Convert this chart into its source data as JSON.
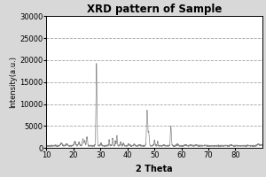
{
  "title": "XRD pattern of Sample",
  "xlabel": "2 Theta",
  "ylabel": "Intensity(a.u.)",
  "xlim": [
    10,
    90
  ],
  "ylim": [
    0,
    30000
  ],
  "yticks": [
    0,
    5000,
    10000,
    15000,
    20000,
    25000,
    30000
  ],
  "xticks": [
    10,
    20,
    30,
    40,
    50,
    60,
    70,
    80
  ],
  "background_color": "#d8d8d8",
  "plot_bg_color": "#ffffff",
  "line_color": "#888888",
  "grid_color": "#999999",
  "title_fontsize": 8.5,
  "label_fontsize": 7,
  "tick_fontsize": 6,
  "peak_data": [
    [
      28.5,
      0.18,
      19200
    ],
    [
      47.3,
      0.22,
      8600
    ],
    [
      56.1,
      0.18,
      5000
    ],
    [
      36.1,
      0.15,
      2800
    ],
    [
      33.2,
      0.15,
      1800
    ],
    [
      34.5,
      0.15,
      2200
    ],
    [
      35.5,
      0.15,
      1600
    ],
    [
      47.9,
      0.18,
      3500
    ],
    [
      50.0,
      0.18,
      1800
    ],
    [
      51.2,
      0.15,
      1400
    ],
    [
      23.5,
      0.22,
      2000
    ],
    [
      25.0,
      0.18,
      2500
    ],
    [
      24.2,
      0.18,
      1700
    ],
    [
      22.0,
      0.22,
      1300
    ],
    [
      20.5,
      0.28,
      1400
    ],
    [
      17.5,
      0.28,
      900
    ],
    [
      15.5,
      0.28,
      1100
    ],
    [
      30.2,
      0.18,
      1100
    ],
    [
      37.5,
      0.18,
      1400
    ],
    [
      38.5,
      0.18,
      1100
    ],
    [
      40.5,
      0.22,
      900
    ],
    [
      42.5,
      0.22,
      800
    ],
    [
      44.5,
      0.22,
      700
    ],
    [
      53.5,
      0.18,
      700
    ],
    [
      58.5,
      0.22,
      900
    ],
    [
      61.5,
      0.25,
      700
    ],
    [
      63.5,
      0.25,
      600
    ],
    [
      65.5,
      0.25,
      650
    ],
    [
      68.5,
      0.25,
      550
    ],
    [
      69.5,
      0.25,
      500
    ],
    [
      72.5,
      0.28,
      500
    ],
    [
      76.5,
      0.28,
      550
    ],
    [
      78.5,
      0.28,
      650
    ],
    [
      80.5,
      0.28,
      550
    ],
    [
      82.5,
      0.28,
      500
    ],
    [
      84.5,
      0.28,
      550
    ],
    [
      86.5,
      0.28,
      500
    ],
    [
      88.5,
      0.28,
      900
    ],
    [
      89.5,
      0.28,
      750
    ]
  ],
  "baseline": 500,
  "noise_std": 60,
  "seed": 42
}
